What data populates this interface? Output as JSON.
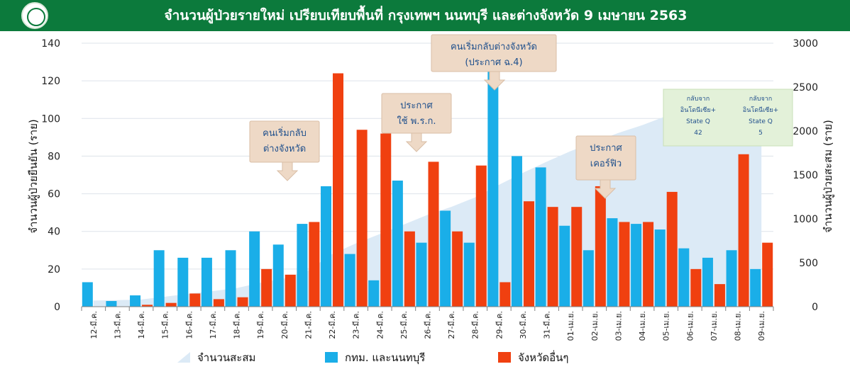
{
  "header": {
    "title": "จำนวนผู้ป่วยรายใหม่ เปรียบเทียบพื้นที่ กรุงเทพฯ นนทบุรี และต่างจังหวัด 9 เมษายน 2563"
  },
  "colors": {
    "bangkok": "#1aaee8",
    "provinces": "#f04010",
    "cumulative": "#dceaf6",
    "header": "#0c7a3c"
  },
  "annotations": [
    {
      "id": "a1",
      "lines": [
        "คนเริ่มกลับ",
        "ต่างจังหวัด"
      ]
    },
    {
      "id": "a2",
      "lines": [
        "ประกาศ",
        "ใช้ พ.ร.ก."
      ]
    },
    {
      "id": "a3",
      "lines": [
        "คนเริ่มกลับต่างจังหวัด",
        "(ประกาศ ฉ.4)"
      ]
    },
    {
      "id": "a4",
      "lines": [
        "ประกาศ",
        "เคอร์ฟิว"
      ]
    }
  ],
  "green_boxes": [
    {
      "lines": [
        "กลับจาก",
        "อินโดนีเซีย+",
        "State Q",
        "42"
      ]
    },
    {
      "lines": [
        "กลับจาก",
        "อินโดนีเซีย+",
        "State Q",
        "5"
      ]
    }
  ],
  "chart_data": {
    "type": "bar",
    "categories": [
      "12-มี.ค.",
      "13-มี.ค.",
      "14-มี.ค.",
      "15-มี.ค.",
      "16-มี.ค.",
      "17-มี.ค.",
      "18-มี.ค.",
      "19-มี.ค.",
      "20-มี.ค.",
      "21-มี.ค.",
      "22-มี.ค.",
      "23-มี.ค.",
      "24-มี.ค.",
      "25-มี.ค.",
      "26-มี.ค.",
      "27-มี.ค.",
      "28-มี.ค.",
      "29-มี.ค.",
      "30-มี.ค.",
      "31-มี.ค.",
      "01-เม.ย.",
      "02-เม.ย.",
      "03-เม.ย.",
      "04-เม.ย.",
      "05-เม.ย.",
      "06-เม.ย.",
      "07-เม.ย.",
      "08-เม.ย.",
      "09-เม.ย."
    ],
    "series": [
      {
        "name": "กทม. และนนทบุรี",
        "axis": "left",
        "values": [
          13,
          3,
          6,
          30,
          26,
          26,
          30,
          40,
          33,
          44,
          64,
          28,
          14,
          67,
          34,
          51,
          34,
          128,
          80,
          74,
          43,
          30,
          47,
          44,
          41,
          31,
          26,
          30,
          20
        ]
      },
      {
        "name": "จังหวัดอื่นๆ",
        "axis": "left",
        "values": [
          0,
          0,
          1,
          2,
          7,
          4,
          5,
          20,
          17,
          45,
          124,
          94,
          92,
          40,
          77,
          40,
          75,
          13,
          56,
          53,
          53,
          64,
          45,
          45,
          61,
          20,
          12,
          81,
          34
        ]
      },
      {
        "name": "จำนวนสะสม",
        "axis": "right",
        "type": "area",
        "values": [
          70,
          75,
          82,
          114,
          147,
          177,
          212,
          272,
          322,
          411,
          599,
          721,
          827,
          934,
          1045,
          1136,
          1245,
          1388,
          1524,
          1651,
          1771,
          1875,
          1978,
          2067,
          2169,
          2220,
          2258,
          2369,
          2423
        ]
      }
    ],
    "ylabel": "จำนวนผู้ป่วยยืนยัน (ราย)",
    "y2label": "จำนวนผู้ป่วยสะสม (ราย)",
    "ylim": [
      0,
      140
    ],
    "y2lim": [
      0,
      3000
    ],
    "yticks": [
      0,
      20,
      40,
      60,
      80,
      100,
      120,
      140
    ],
    "y2ticks": [
      0,
      500,
      1000,
      1500,
      2000,
      2500,
      3000
    ],
    "legend": [
      "จำนวนสะสม",
      "กทม. และนนทบุรี",
      "จังหวัดอื่นๆ"
    ],
    "legend_position": "bottom",
    "grid": true
  }
}
